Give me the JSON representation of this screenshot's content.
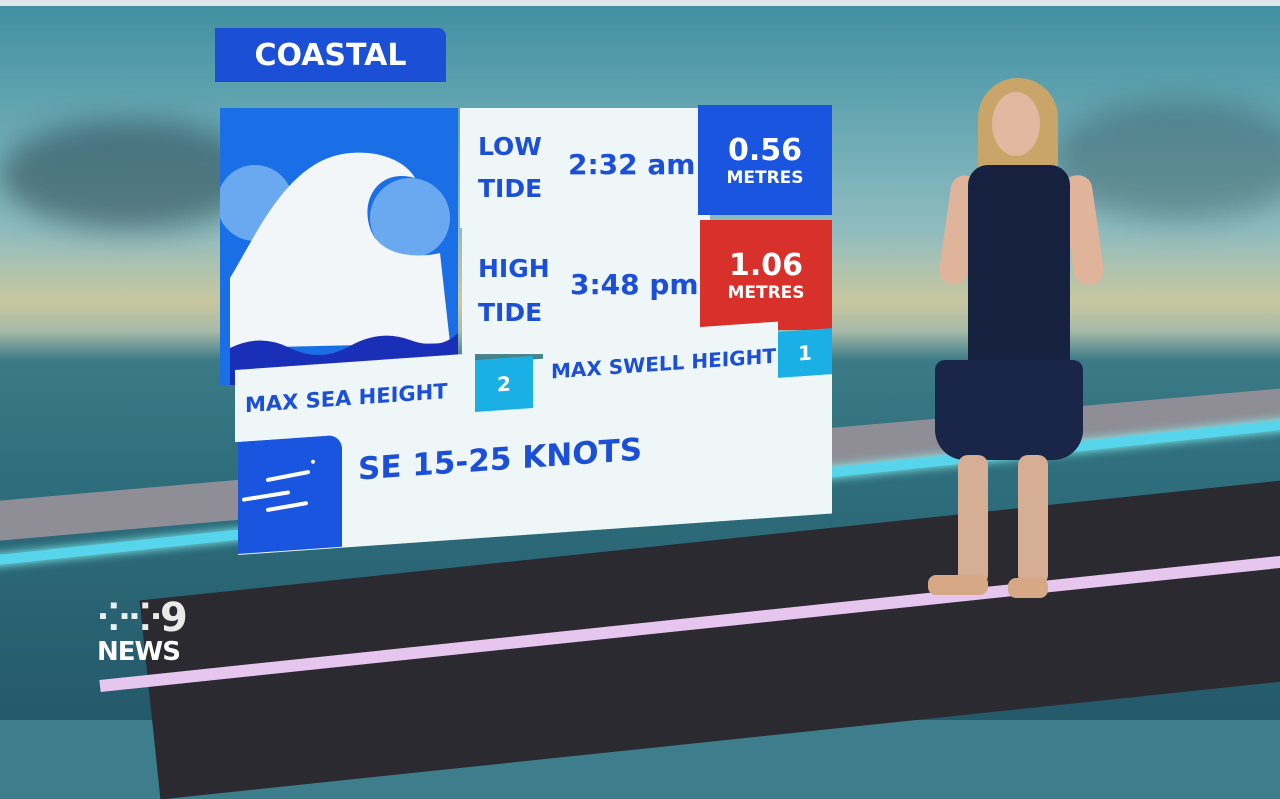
{
  "graphic": {
    "title": "COASTAL",
    "low_tide": {
      "label_1": "LOW",
      "label_2": "TIDE",
      "time": "2:32 am",
      "value": "0.56",
      "unit": "METRES",
      "color": "#1a55e0"
    },
    "high_tide": {
      "label_1": "HIGH",
      "label_2": "TIDE",
      "time": "3:48 pm",
      "value": "1.06",
      "unit": "METRES",
      "color": "#d8312c"
    },
    "max_sea_height": {
      "label": "MAX SEA HEIGHT",
      "value": "2"
    },
    "max_swell_height": {
      "label": "MAX SWELL HEIGHT",
      "value": "1"
    },
    "wind": {
      "text": "SE 15-25 KNOTS",
      "icon": "wind-icon"
    },
    "wave_icon": "wave-icon"
  },
  "logo": {
    "text": "9 NEWS"
  }
}
